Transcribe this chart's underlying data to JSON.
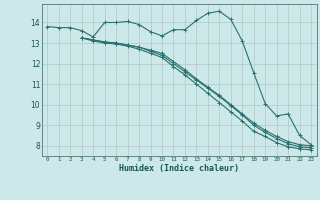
{
  "xlabel": "Humidex (Indice chaleur)",
  "ylabel": "",
  "xlim": [
    -0.5,
    23.5
  ],
  "ylim": [
    7.5,
    14.9
  ],
  "xtick_labels": [
    "0",
    "1",
    "2",
    "3",
    "4",
    "5",
    "6",
    "7",
    "8",
    "9",
    "10",
    "11",
    "12",
    "13",
    "14",
    "15",
    "16",
    "17",
    "18",
    "19",
    "20",
    "21",
    "22",
    "23"
  ],
  "ytick_labels": [
    "8",
    "9",
    "10",
    "11",
    "12",
    "13",
    "14"
  ],
  "background_color": "#cde8e8",
  "grid_color": "#b0c8c8",
  "line_color": "#2a7070",
  "lines": [
    {
      "x": [
        0,
        1,
        2,
        3,
        4,
        5,
        6,
        7,
        8,
        9,
        10,
        11,
        12,
        13,
        14,
        15,
        16,
        17,
        18,
        19,
        20,
        21,
        22,
        23
      ],
      "y": [
        13.8,
        13.75,
        13.75,
        13.6,
        13.3,
        14.0,
        14.0,
        14.05,
        13.9,
        13.55,
        13.35,
        13.65,
        13.65,
        14.1,
        14.45,
        14.55,
        14.15,
        13.1,
        11.55,
        10.05,
        9.45,
        9.55,
        8.5,
        8.05
      ]
    },
    {
      "x": [
        3,
        4,
        5,
        6,
        7,
        8,
        9,
        10,
        11,
        12,
        13,
        14,
        15,
        16,
        17,
        18,
        19,
        20,
        21,
        22,
        23
      ],
      "y": [
        13.25,
        13.15,
        13.05,
        13.0,
        12.9,
        12.8,
        12.65,
        12.5,
        12.1,
        11.7,
        11.25,
        10.85,
        10.45,
        10.0,
        9.55,
        9.1,
        8.75,
        8.45,
        8.2,
        8.05,
        8.0
      ]
    },
    {
      "x": [
        3,
        4,
        5,
        6,
        7,
        8,
        9,
        10,
        11,
        12,
        13,
        14,
        15,
        16,
        17,
        18,
        19,
        20,
        21,
        22,
        23
      ],
      "y": [
        13.25,
        13.15,
        13.05,
        13.0,
        12.9,
        12.8,
        12.6,
        12.4,
        12.0,
        11.6,
        11.2,
        10.8,
        10.4,
        9.95,
        9.5,
        9.0,
        8.65,
        8.35,
        8.1,
        7.95,
        7.9
      ]
    },
    {
      "x": [
        3,
        4,
        5,
        6,
        7,
        8,
        9,
        10,
        11,
        12,
        13,
        14,
        15,
        16,
        17,
        18,
        19,
        20,
        21,
        22,
        23
      ],
      "y": [
        13.25,
        13.1,
        13.0,
        12.95,
        12.85,
        12.7,
        12.5,
        12.3,
        11.85,
        11.45,
        11.0,
        10.55,
        10.1,
        9.65,
        9.2,
        8.7,
        8.45,
        8.15,
        7.95,
        7.85,
        7.8
      ]
    }
  ]
}
